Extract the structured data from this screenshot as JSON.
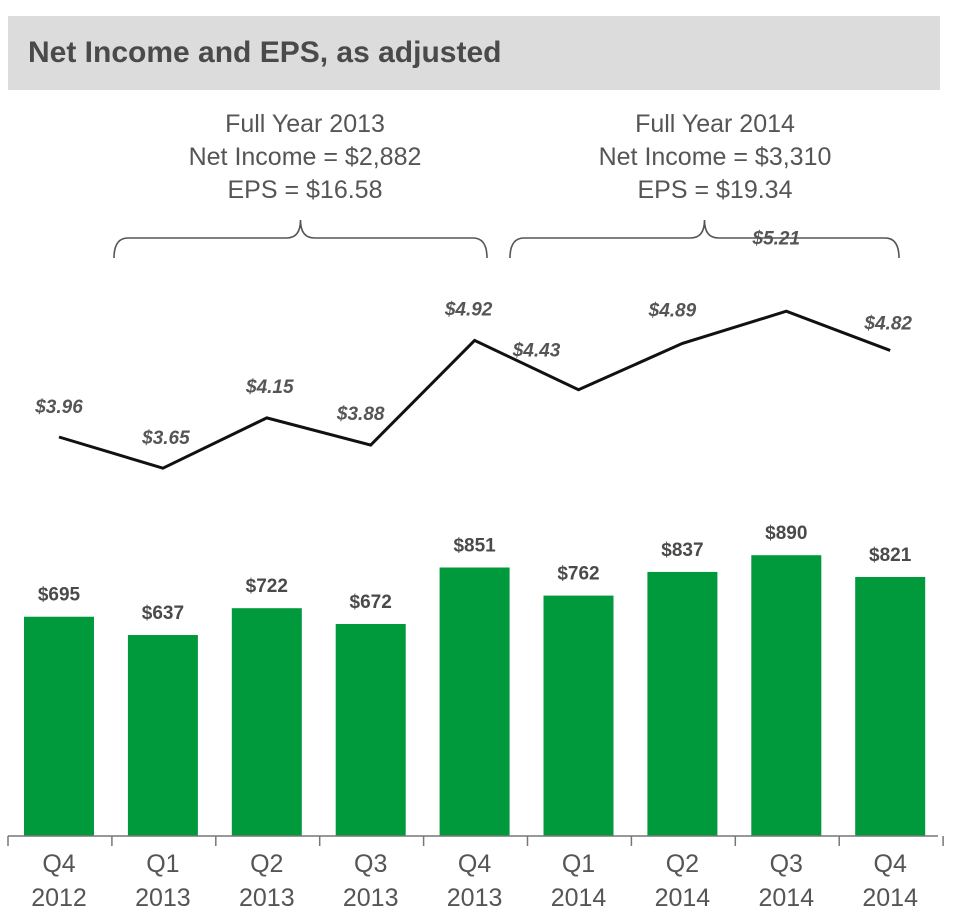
{
  "header": {
    "title": "Net Income and EPS, as adjusted"
  },
  "annotations": [
    {
      "lines": [
        "Full Year 2013",
        "Net Income = $2,882",
        "EPS = $16.58"
      ]
    },
    {
      "lines": [
        "Full Year 2014",
        "Net Income = $3,310",
        "EPS = $19.34"
      ]
    }
  ],
  "colors": {
    "bar": "#009a3d",
    "line": "#111111",
    "header_bg": "#dcdcdc"
  },
  "chart_data": {
    "type": "bar",
    "title": "Net Income and EPS, as adjusted",
    "categories": [
      [
        "Q4",
        "2012"
      ],
      [
        "Q1",
        "2013"
      ],
      [
        "Q2",
        "2013"
      ],
      [
        "Q3",
        "2013"
      ],
      [
        "Q4",
        "2013"
      ],
      [
        "Q1",
        "2014"
      ],
      [
        "Q2",
        "2014"
      ],
      [
        "Q3",
        "2014"
      ],
      [
        "Q4",
        "2014"
      ]
    ],
    "series": [
      {
        "type": "bar",
        "values": [
          695,
          637,
          722,
          672,
          851,
          762,
          837,
          890,
          821
        ],
        "labels": [
          "$695",
          "$637",
          "$722",
          "$672",
          "$851",
          "$762",
          "$837",
          "$890",
          "$821"
        ]
      },
      {
        "type": "line",
        "values": [
          3.96,
          3.65,
          4.15,
          3.88,
          4.92,
          4.43,
          4.89,
          5.21,
          4.82
        ],
        "labels": [
          "$3.96",
          "$3.65",
          "$4.15",
          "$3.88",
          "$4.92",
          "$4.43",
          "$4.89",
          "$5.21",
          "$4.82"
        ]
      }
    ],
    "groups": [
      {
        "from_index": 1,
        "to_index": 4,
        "annotation_index": 0
      },
      {
        "from_index": 5,
        "to_index": 8,
        "annotation_index": 1
      }
    ],
    "legend": "none",
    "grid": false
  }
}
